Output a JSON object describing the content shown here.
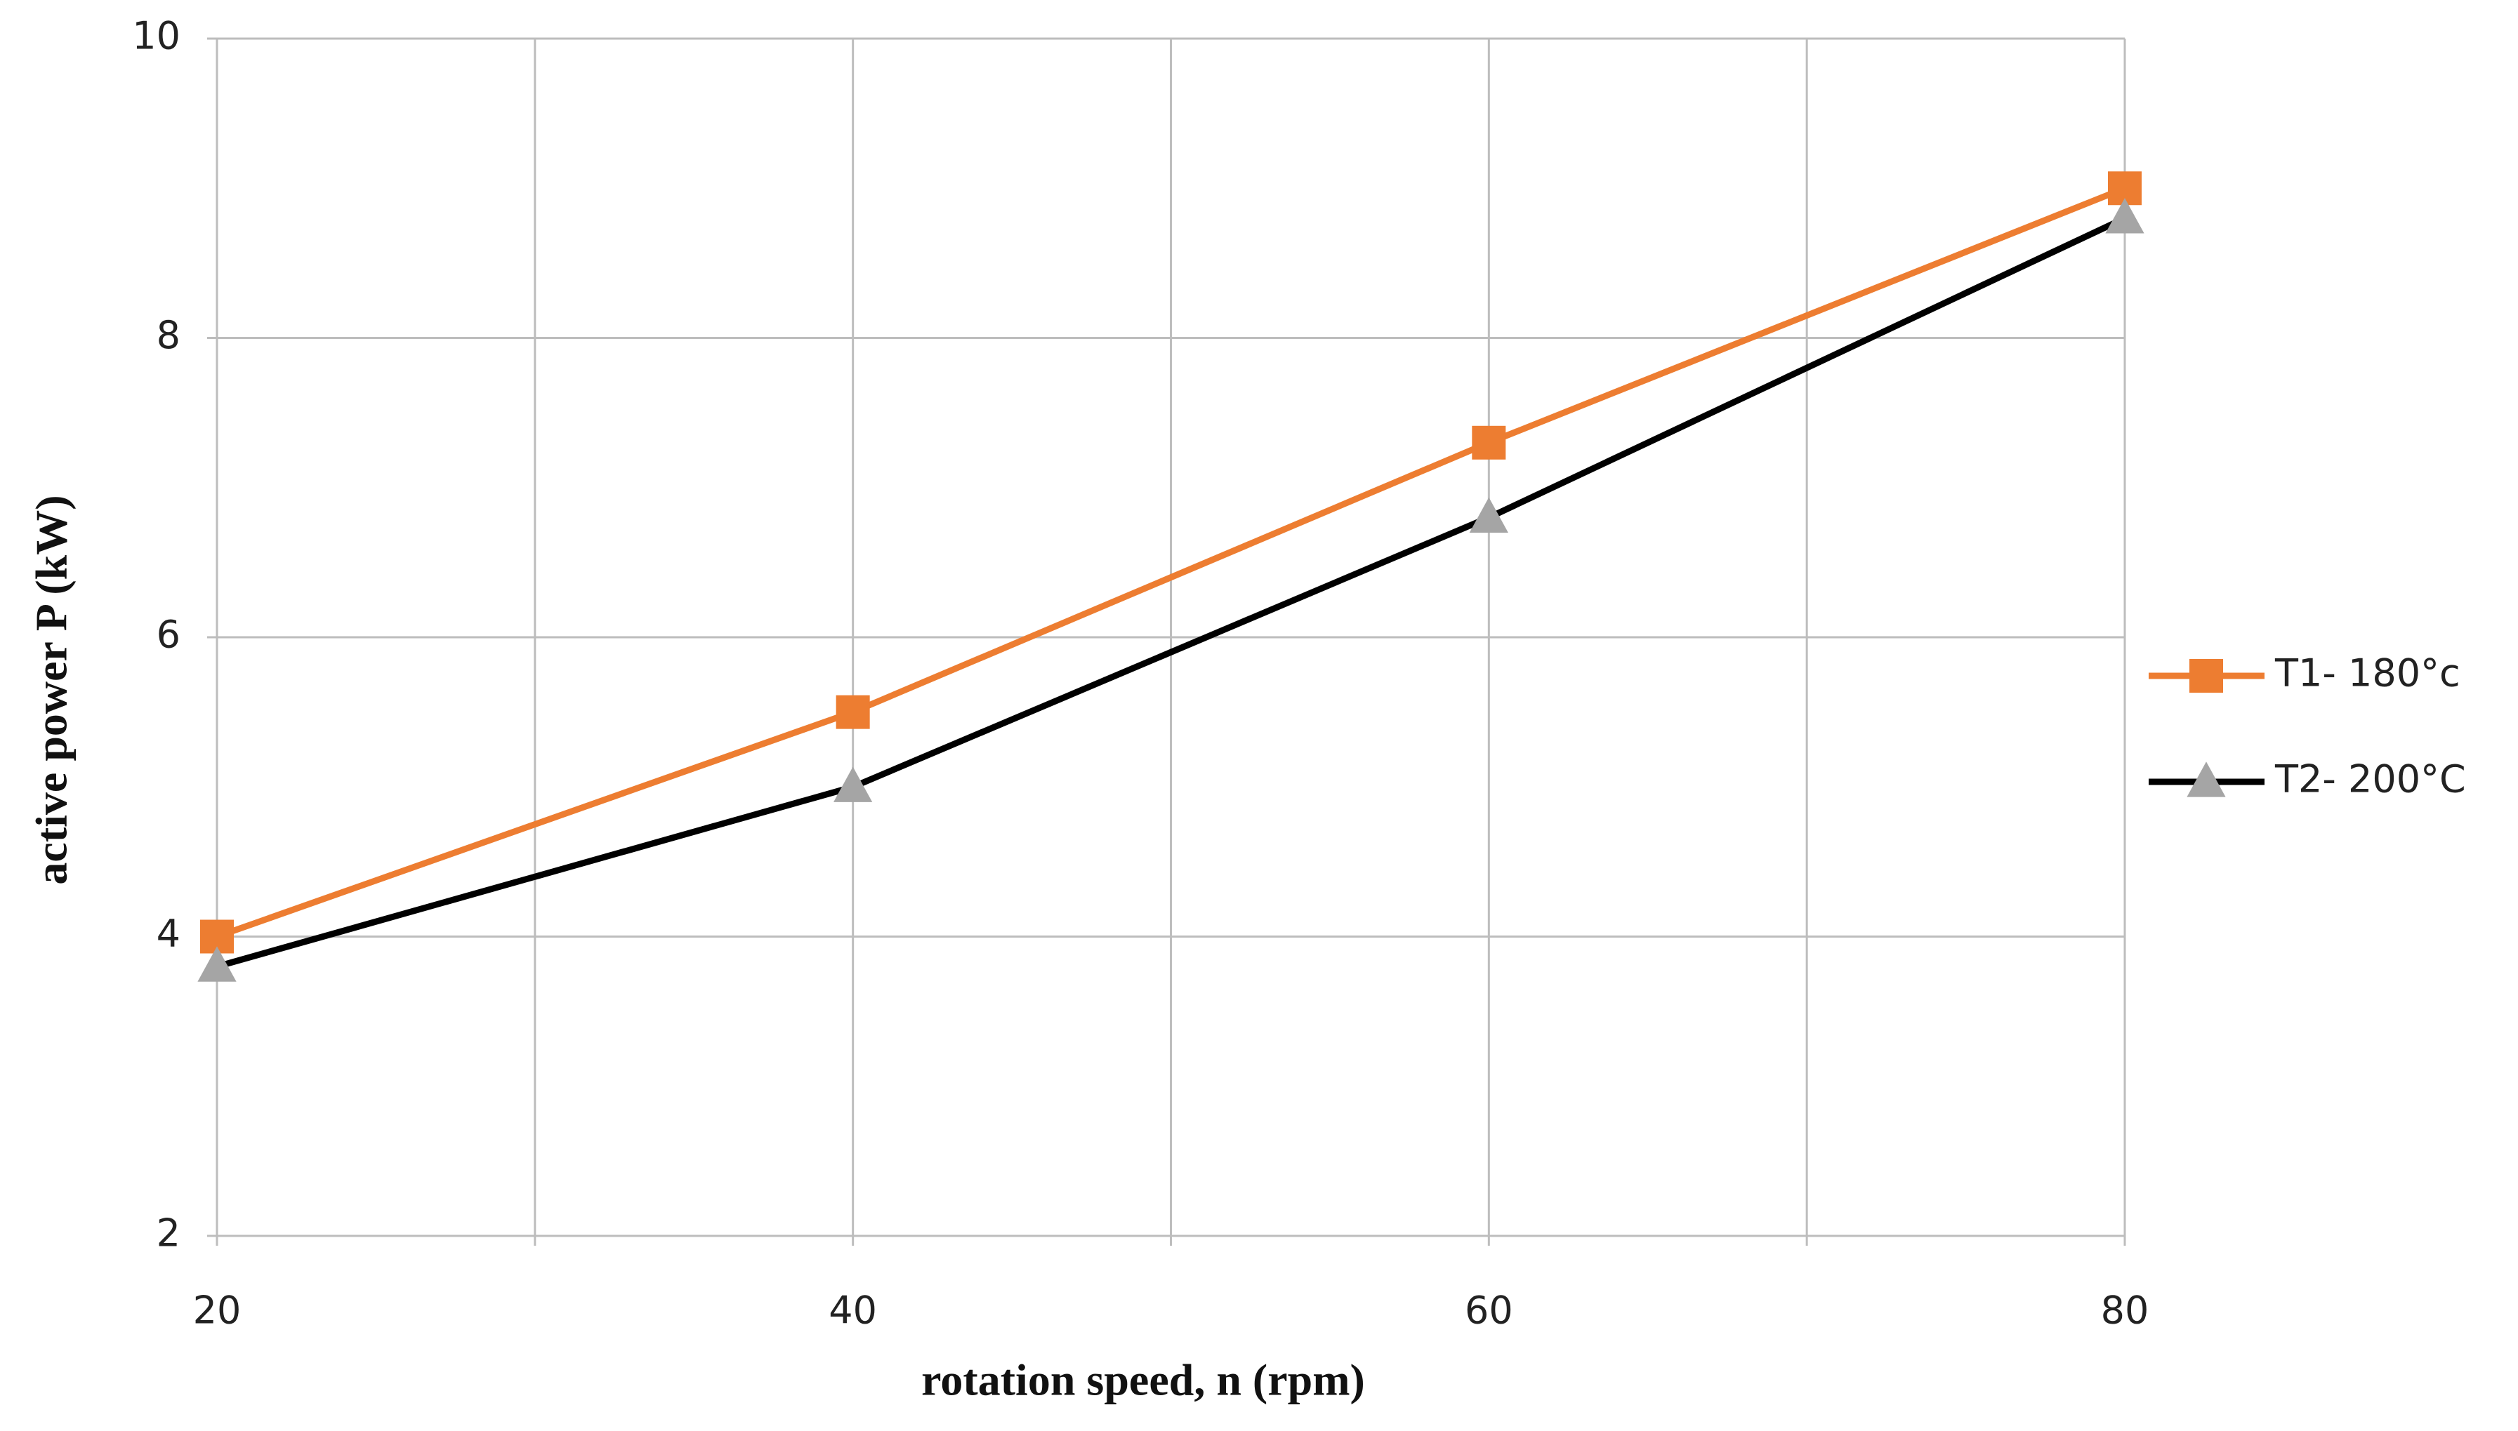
{
  "chart_data": {
    "type": "line",
    "x_label": "rotation speed,  n (rpm)",
    "y_label": "active power P (kW)",
    "x": [
      20,
      40,
      60,
      80
    ],
    "xlim": [
      20,
      80
    ],
    "xticks": [
      20,
      40,
      60,
      80
    ],
    "x_minor_grid": [
      30,
      50,
      70
    ],
    "ylim": [
      2,
      10
    ],
    "yticks": [
      2,
      4,
      6,
      8,
      10
    ],
    "grid": true,
    "legend": "right",
    "series": [
      {
        "name": "T1- 180°c",
        "color": "#ed7d31",
        "marker": "square",
        "marker_color": "#ed7d31",
        "values": [
          4.0,
          5.5,
          7.3,
          9.0
        ]
      },
      {
        "name": "T2- 200°C",
        "color": "#000000",
        "marker": "triangle",
        "marker_color": "#a5a5a5",
        "values": [
          3.8,
          5.0,
          6.8,
          8.8
        ]
      }
    ]
  }
}
